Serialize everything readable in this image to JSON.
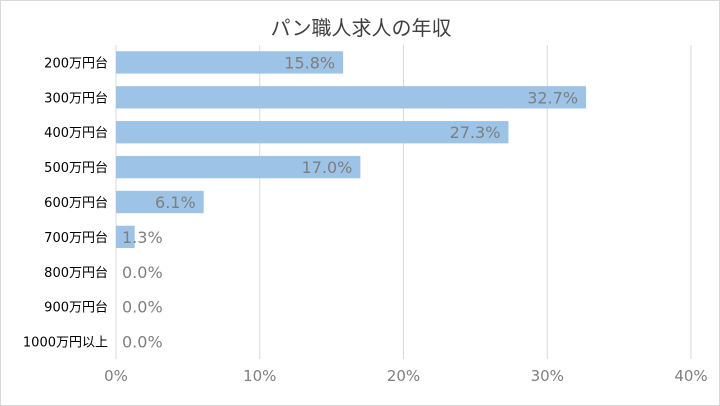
{
  "chart_data": {
    "type": "bar",
    "orientation": "horizontal",
    "title": "パン職人求人の年収",
    "categories": [
      "200万円台",
      "300万円台",
      "400万円台",
      "500万円台",
      "600万円台",
      "700万円台",
      "800万円台",
      "900万円台",
      "1000万円以上"
    ],
    "values": [
      15.8,
      32.7,
      27.3,
      17.0,
      6.1,
      1.3,
      0.0,
      0.0,
      0.0
    ],
    "data_labels": [
      "15.8%",
      "32.7%",
      "27.3%",
      "17.0%",
      "6.1%",
      "1.3%",
      "0.0%",
      "0.0%",
      "0.0%"
    ],
    "x_ticks": [
      "0%",
      "10%",
      "20%",
      "30%",
      "40%"
    ],
    "xlim": [
      0,
      40
    ],
    "grid": "vertical",
    "legend": "none",
    "bar_color": "#9dc3e6",
    "grid_color": "#d9d9d9"
  }
}
